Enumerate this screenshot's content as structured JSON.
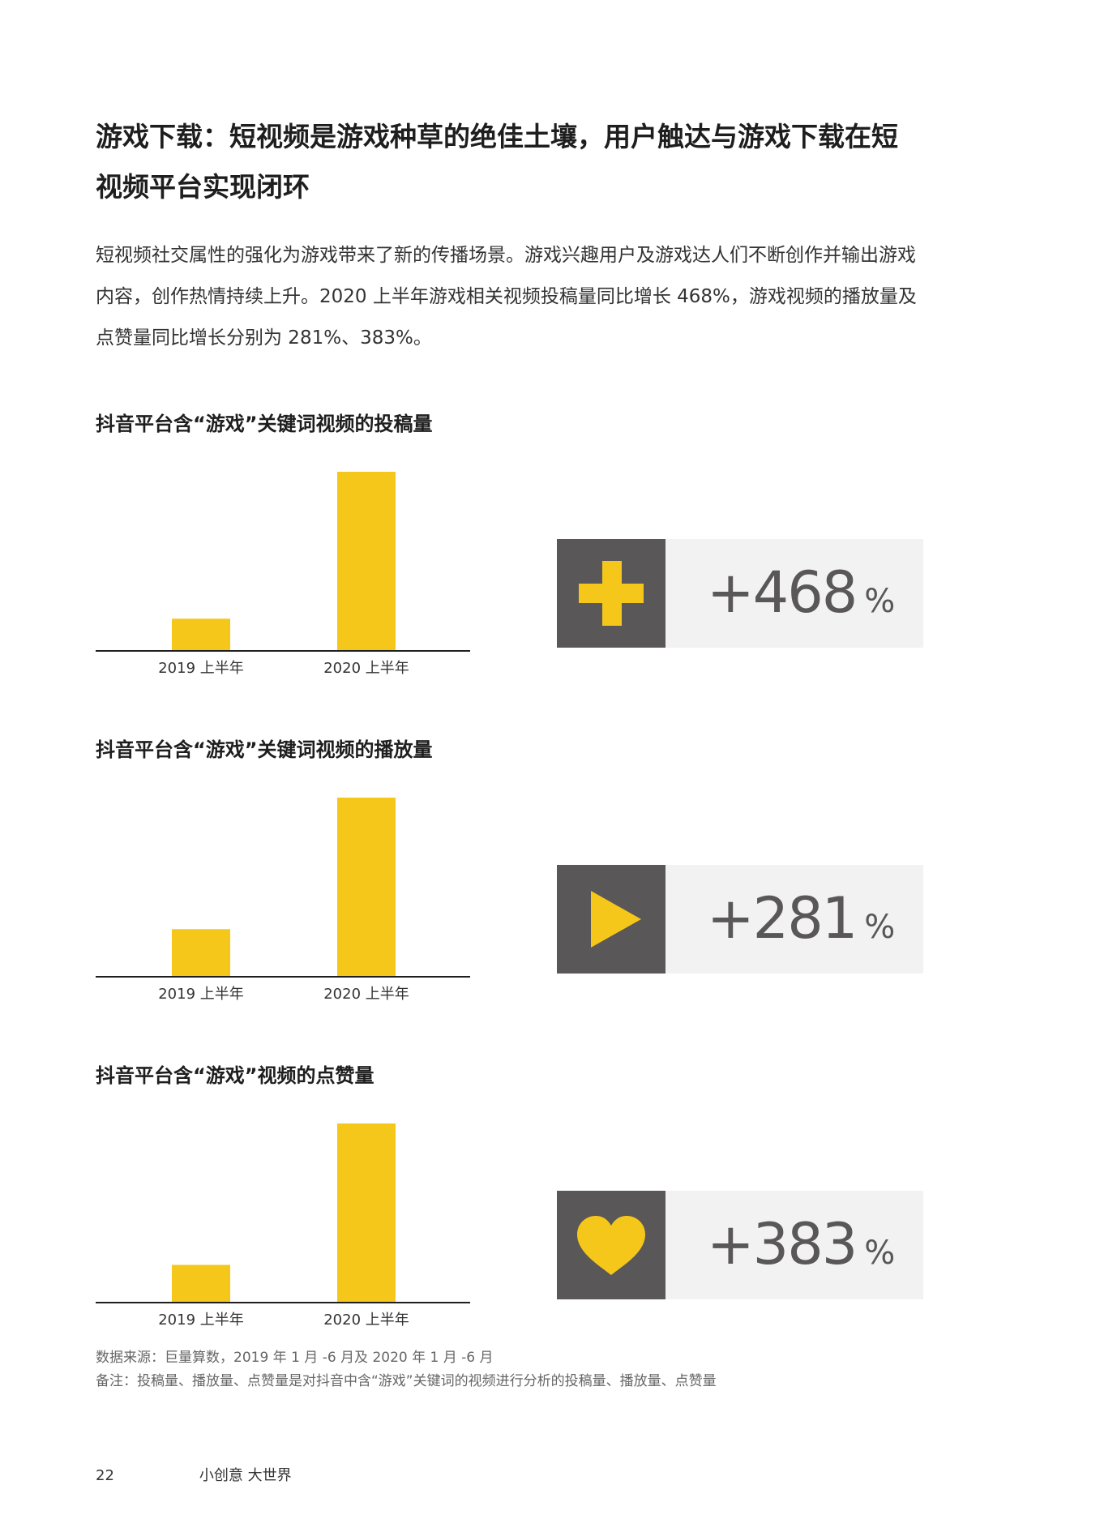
{
  "page": {
    "title": "游戏下载：短视频是游戏种草的绝佳土壤，用户触达与游戏下载在短视频平台实现闭环",
    "intro": "短视频社交属性的强化为游戏带来了新的传播场景。游戏兴趣用户及游戏达人们不断创作并输出游戏内容，创作热情持续上升。2020 上半年游戏相关视频投稿量同比增长 468%，游戏视频的播放量及点赞量同比增长分别为 281%、383%。",
    "footnote_source": "数据来源：巨量算数，2019 年 1 月 -6 月及 2020 年 1 月 -6 月",
    "footnote_note": "备注：投稿量、播放量、点赞量是对抖音中含“游戏”关键词的视频进行分析的投稿量、播放量、点赞量",
    "page_number": "22",
    "slogan": "小创意 大世界"
  },
  "colors": {
    "bar": "#F5C71A",
    "icon_box": "#595757",
    "card_bg": "#F2F2F2",
    "axis": "#1E1E1E"
  },
  "stats": [
    {
      "value": "+468",
      "unit": "%",
      "icon": "plus-icon"
    },
    {
      "value": "+281",
      "unit": "%",
      "icon": "play-icon"
    },
    {
      "value": "+383",
      "unit": "%",
      "icon": "heart-icon"
    }
  ],
  "chart_data": [
    {
      "type": "bar",
      "title": "抖音平台含“游戏”关键词视频的投稿量",
      "categories": [
        "2019 上半年",
        "2020 上半年"
      ],
      "values": [
        100,
        568
      ],
      "ylim": [
        0,
        568
      ],
      "grid": false,
      "legend": "none"
    },
    {
      "type": "bar",
      "title": "抖音平台含“游戏”关键词视频的播放量",
      "categories": [
        "2019 上半年",
        "2020 上半年"
      ],
      "values": [
        100,
        381
      ],
      "ylim": [
        0,
        381
      ],
      "grid": false,
      "legend": "none"
    },
    {
      "type": "bar",
      "title": "抖音平台含“游戏”视频的点赞量",
      "categories": [
        "2019 上半年",
        "2020 上半年"
      ],
      "values": [
        100,
        483
      ],
      "ylim": [
        0,
        483
      ],
      "grid": false,
      "legend": "none"
    }
  ]
}
